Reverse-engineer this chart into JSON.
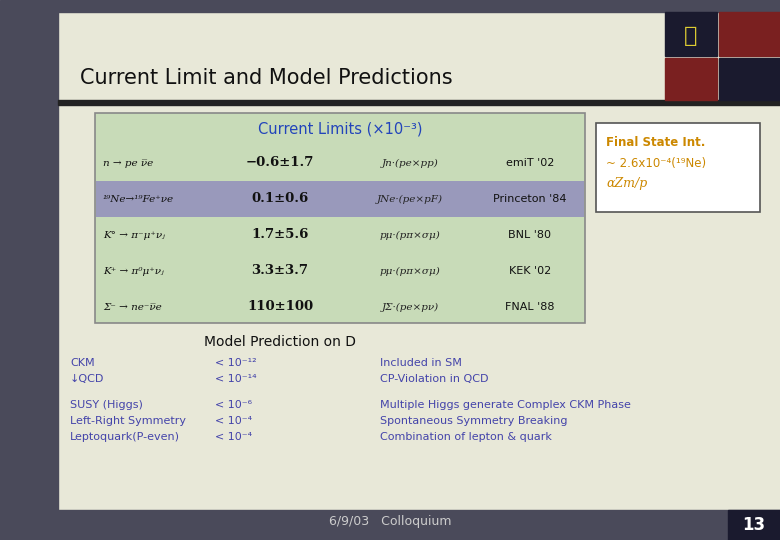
{
  "title": "Current Limit and Model Predictions",
  "bg_color": "#e8e8d8",
  "title_color": "#111111",
  "table_title": "Current Limits (×10⁻³)",
  "table_bg": "#c8dbb8",
  "table_border": "#888888",
  "table_title_color": "#2244bb",
  "table_highlight_bg": "#9999bb",
  "table_rows": [
    {
      "reaction": "n → pe ν̅e",
      "value": "−0.6±1.7",
      "operator": "Jn·(pe×pp)",
      "source": "emiT '02",
      "highlight": false
    },
    {
      "reaction": "¹⁹Ne→¹⁹Fe⁺νe",
      "value": "0.1±0.6",
      "operator": "JNe·(pe×pF)",
      "source": "Princeton '84",
      "highlight": true
    },
    {
      "reaction": "K° → π⁻μ⁺νⱼ",
      "value": "1.7±5.6",
      "operator": "pμ·(pπ×σμ)",
      "source": "BNL '80",
      "highlight": false
    },
    {
      "reaction": "K⁺ → π⁰μ⁺νⱼ",
      "value": "3.3±3.7",
      "operator": "pμ·(pπ×σμ)",
      "source": "KEK '02",
      "highlight": false
    },
    {
      "reaction": "Σ⁻ → ne⁻ν̅e",
      "value": "110±100",
      "operator": "JΣ·(pe×pν)",
      "source": "FNAL '88",
      "highlight": false
    }
  ],
  "final_state_title": "Final State Int.",
  "final_state_line2": "~ 2.6x10⁻⁴(¹⁹Ne)",
  "final_state_line3": "αZm/p",
  "final_state_color": "#cc8800",
  "model_title": "Model Prediction on D",
  "model_title_color": "#111111",
  "model_left_col1": [
    "CKM",
    "↓QCD",
    "",
    "SUSY (Higgs)",
    "Left-Right Symmetry",
    "Leptoquark(P-even)"
  ],
  "model_left_col2": [
    "< 10⁻¹²",
    "< 10⁻¹⁴",
    "",
    "< 10⁻⁶",
    "< 10⁻⁴",
    "< 10⁻⁴"
  ],
  "model_right": [
    "Included in SM",
    "CP-Violation in QCD",
    "",
    "Multiple Higgs generate Complex CKM Phase",
    "Spontaneous Symmetry Breaking",
    "Combination of lepton & quark"
  ],
  "model_color": "#4444aa",
  "footer_text": "6/9/03   Colloquium",
  "footer_color": "#333333",
  "page_num": "13",
  "left_panel_color": "#4a4a5a",
  "top_bar_color": "#4a4a5a",
  "bottom_bar_color": "#4a4a5a",
  "logo_dark": "#1a1a2e",
  "logo_red": "#7a2020",
  "logo_icon_color": "#ddcc33",
  "header_line_color": "#222222"
}
